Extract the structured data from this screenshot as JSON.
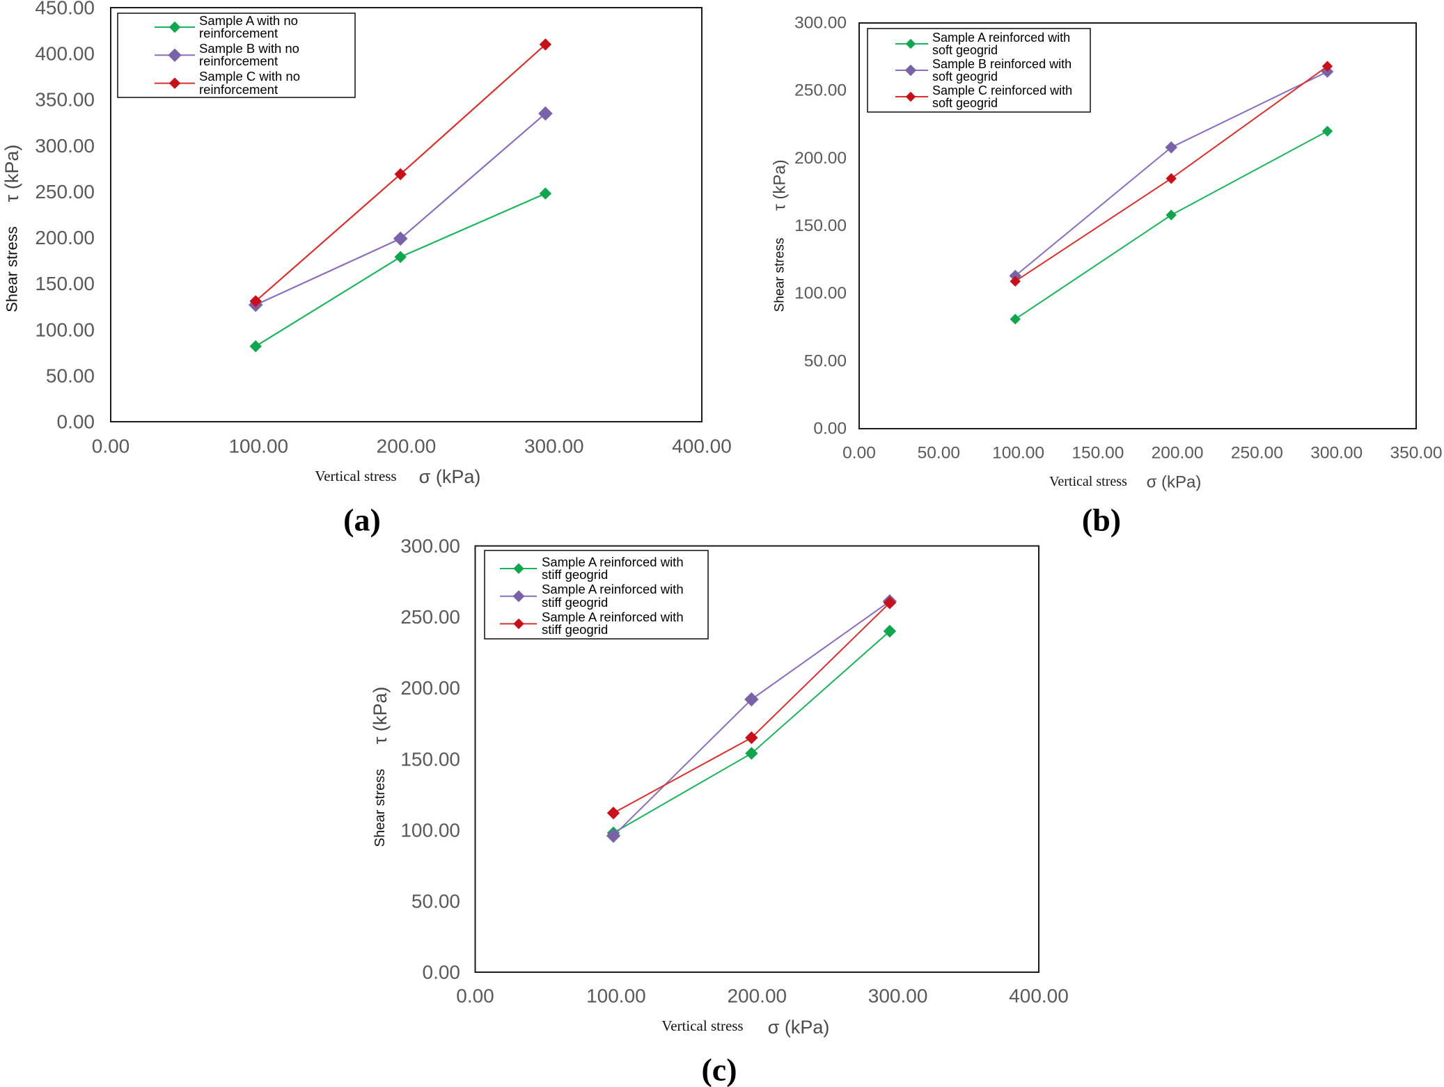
{
  "chart_data": [
    {
      "type": "line",
      "panel_label": "(a)",
      "xlabel": "Vertical stress",
      "xlabel_unit": "σ (kPa)",
      "ylabel": "Shear stress",
      "ylabel_unit": "τ (kPa)",
      "xlim": [
        0,
        400
      ],
      "ylim": [
        0,
        450
      ],
      "xticks": [
        0,
        100,
        200,
        300,
        400
      ],
      "xtick_labels": [
        "0.00",
        "100.00",
        "200.00",
        "300.00",
        "400.00"
      ],
      "yticks": [
        0,
        50,
        100,
        150,
        200,
        250,
        300,
        350,
        400,
        450
      ],
      "ytick_labels": [
        "0.00",
        "50.00",
        "100.00",
        "150.00",
        "200.00",
        "250.00",
        "300.00",
        "350.00",
        "400.00",
        "450.00"
      ],
      "grid": false,
      "legend": "top-left",
      "x": [
        98.1,
        196.1,
        294.2
      ],
      "series": [
        {
          "name": "Sample A with no reinforcement",
          "color": "#1cb45a",
          "marker_color": "#10a64e",
          "values": [
            82,
            179,
            248
          ]
        },
        {
          "name": "Sample B with no reinforcement",
          "color": "#8a6cc0",
          "marker_color": "#7a62a8",
          "values": [
            127,
            199,
            335
          ]
        },
        {
          "name": "Sample C with no reinforcement",
          "color": "#d9302c",
          "marker_color": "#c8101a",
          "values": [
            131,
            269,
            410
          ]
        }
      ]
    },
    {
      "type": "line",
      "panel_label": "(b)",
      "xlabel": "Vertical stress",
      "xlabel_unit": "σ (kPa)",
      "ylabel": "Shear stress",
      "ylabel_unit": "τ (kPa)",
      "xlim": [
        0,
        350
      ],
      "ylim": [
        0,
        300
      ],
      "xticks": [
        0,
        50,
        100,
        150,
        200,
        250,
        300,
        350
      ],
      "xtick_labels": [
        "0.00",
        "50.00",
        "100.00",
        "150.00",
        "200.00",
        "250.00",
        "300.00",
        "350.00"
      ],
      "yticks": [
        0,
        50,
        100,
        150,
        200,
        250,
        300
      ],
      "ytick_labels": [
        "0.00",
        "50.00",
        "100.00",
        "150.00",
        "200.00",
        "250.00",
        "300.00"
      ],
      "grid": false,
      "legend": "top-left",
      "x": [
        98.1,
        196.1,
        294.2
      ],
      "series": [
        {
          "name": "Sample A reinforced with soft geogrid",
          "color": "#1cb45a",
          "marker_color": "#10a64e",
          "values": [
            81,
            158,
            220
          ]
        },
        {
          "name": "Sample B reinforced with soft geogrid",
          "color": "#8a6cc0",
          "marker_color": "#7a62a8",
          "values": [
            113,
            208,
            264
          ]
        },
        {
          "name": "Sample C reinforced with soft geogrid",
          "color": "#d9302c",
          "marker_color": "#c8101a",
          "values": [
            109,
            185,
            268
          ]
        }
      ]
    },
    {
      "type": "line",
      "panel_label": "(c)",
      "xlabel": "Vertical stress",
      "xlabel_unit": "σ (kPa)",
      "ylabel": "Shear stress",
      "ylabel_unit": "τ (kPa)",
      "xlim": [
        0,
        400
      ],
      "ylim": [
        0,
        300
      ],
      "xticks": [
        0,
        100,
        200,
        300,
        400
      ],
      "xtick_labels": [
        "0.00",
        "100.00",
        "200.00",
        "300.00",
        "400.00"
      ],
      "yticks": [
        0,
        50,
        100,
        150,
        200,
        250,
        300
      ],
      "ytick_labels": [
        "0.00",
        "50.00",
        "100.00",
        "150.00",
        "200.00",
        "250.00",
        "300.00"
      ],
      "grid": false,
      "legend": "top-left",
      "x": [
        98.1,
        196.1,
        294.2
      ],
      "series": [
        {
          "name": "Sample A reinforced with stiff geogrid",
          "color": "#1cb45a",
          "marker_color": "#10a64e",
          "values": [
            98,
            154,
            240
          ]
        },
        {
          "name": "Sample A reinforced with stiff geogrid",
          "color": "#8a6cc0",
          "marker_color": "#7a62a8",
          "values": [
            96,
            192,
            261
          ]
        },
        {
          "name": "Sample A reinforced with stiff geogrid",
          "color": "#d9302c",
          "marker_color": "#c8101a",
          "values": [
            112,
            165,
            260
          ]
        }
      ]
    }
  ]
}
